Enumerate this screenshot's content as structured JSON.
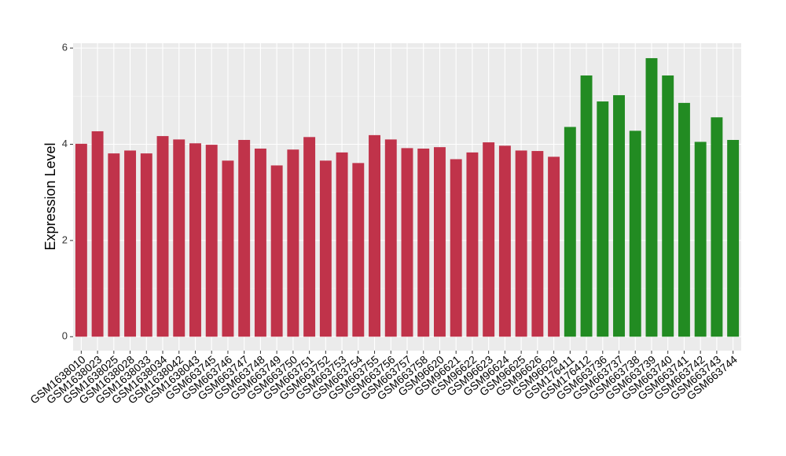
{
  "chart_data": {
    "type": "bar",
    "y_label": "Expression Level",
    "categories": [
      "GSM1638010",
      "GSM1638023",
      "GSM1638025",
      "GSM1638028",
      "GSM1638033",
      "GSM1638034",
      "GSM1638042",
      "GSM1638043",
      "GSM663745",
      "GSM663746",
      "GSM663747",
      "GSM663748",
      "GSM663749",
      "GSM663750",
      "GSM663751",
      "GSM663752",
      "GSM663753",
      "GSM663754",
      "GSM663755",
      "GSM663756",
      "GSM663757",
      "GSM663758",
      "GSM96620",
      "GSM96621",
      "GSM96622",
      "GSM96623",
      "GSM96624",
      "GSM96625",
      "GSM96626",
      "GSM96629",
      "GSM176411",
      "GSM176412",
      "GSM663736",
      "GSM663737",
      "GSM663738",
      "GSM663739",
      "GSM663740",
      "GSM663741",
      "GSM663742",
      "GSM663743",
      "GSM663744"
    ],
    "values": [
      4.01,
      4.27,
      3.81,
      3.87,
      3.81,
      4.17,
      4.1,
      4.02,
      3.99,
      3.66,
      4.09,
      3.91,
      3.56,
      3.89,
      4.15,
      3.66,
      3.83,
      3.61,
      4.19,
      4.1,
      3.92,
      3.91,
      3.94,
      3.69,
      3.83,
      4.04,
      3.97,
      3.87,
      3.86,
      3.74,
      4.36,
      5.43,
      4.89,
      5.02,
      4.28,
      5.79,
      5.43,
      4.86,
      4.05,
      4.56,
      4.09
    ],
    "colors": [
      "#c0334a",
      "#c0334a",
      "#c0334a",
      "#c0334a",
      "#c0334a",
      "#c0334a",
      "#c0334a",
      "#c0334a",
      "#c0334a",
      "#c0334a",
      "#c0334a",
      "#c0334a",
      "#c0334a",
      "#c0334a",
      "#c0334a",
      "#c0334a",
      "#c0334a",
      "#c0334a",
      "#c0334a",
      "#c0334a",
      "#c0334a",
      "#c0334a",
      "#c0334a",
      "#c0334a",
      "#c0334a",
      "#c0334a",
      "#c0334a",
      "#c0334a",
      "#c0334a",
      "#c0334a",
      "#228b22",
      "#228b22",
      "#228b22",
      "#228b22",
      "#228b22",
      "#228b22",
      "#228b22",
      "#228b22",
      "#228b22",
      "#228b22",
      "#228b22"
    ],
    "ylim": [
      -0.29,
      6.1
    ],
    "yticks": [
      0,
      2,
      4,
      6
    ],
    "grid": true
  }
}
